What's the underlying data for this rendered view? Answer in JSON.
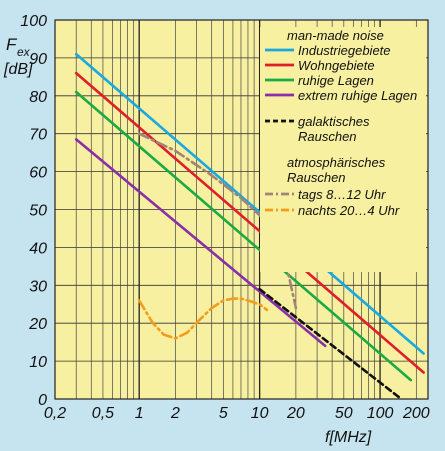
{
  "chart_data": {
    "type": "line",
    "xscale": "log",
    "xlim": [
      0.2,
      250
    ],
    "ylim": [
      0,
      100
    ],
    "xlabel": "f[MHz]",
    "ylabel_line1": "F",
    "ylabel_sub": "ex",
    "ylabel_line2": "[dB]",
    "xticks": [
      {
        "v": 0.2,
        "label": "0,2"
      },
      {
        "v": 0.5,
        "label": "0,5"
      },
      {
        "v": 1,
        "label": "1"
      },
      {
        "v": 2,
        "label": "2"
      },
      {
        "v": 5,
        "label": "5"
      },
      {
        "v": 10,
        "label": "10"
      },
      {
        "v": 20,
        "label": "20"
      },
      {
        "v": 50,
        "label": "50"
      },
      {
        "v": 100,
        "label": "100"
      },
      {
        "v": 200,
        "label": "200"
      }
    ],
    "yticks": [
      0,
      10,
      20,
      30,
      40,
      50,
      60,
      70,
      80,
      90,
      100
    ],
    "legend_placement": "top-right",
    "legend": [
      {
        "text": "man-made noise",
        "kind": "header"
      },
      {
        "text": "Industriegebiete",
        "series": 0
      },
      {
        "text": "Wohngebiete",
        "series": 1
      },
      {
        "text": "ruhige Lagen",
        "series": 2
      },
      {
        "text": "extrem ruhige Lagen",
        "series": 3
      },
      {
        "text": "galaktisches",
        "series": 4
      },
      {
        "text": "Rauschen",
        "kind": "continuation"
      },
      {
        "text": "atmosphärisches",
        "kind": "header"
      },
      {
        "text": "Rauschen",
        "kind": "header"
      },
      {
        "text": "tags 8…12 Uhr",
        "series": 5
      },
      {
        "text": "nachts 20…4 Uhr",
        "series": 6
      }
    ],
    "series": [
      {
        "color": "#19a8e0",
        "style": "solid",
        "x": [
          0.3,
          230
        ],
        "y": [
          91,
          12
        ]
      },
      {
        "color": "#e01e2a",
        "style": "solid",
        "x": [
          0.3,
          230
        ],
        "y": [
          86,
          7
        ]
      },
      {
        "color": "#1aaa44",
        "style": "solid",
        "x": [
          0.3,
          180
        ],
        "y": [
          81,
          5
        ]
      },
      {
        "color": "#8a2fa8",
        "style": "solid",
        "x": [
          0.3,
          35
        ],
        "y": [
          68.5,
          14
        ]
      },
      {
        "color": "#111111",
        "style": "dashed",
        "x": [
          10,
          150
        ],
        "y": [
          29,
          0
        ]
      },
      {
        "color": "#a08476",
        "style": "dashdot",
        "x": [
          1,
          2,
          4,
          7,
          10,
          13,
          16,
          20
        ],
        "y": [
          70,
          65.5,
          59,
          53,
          48.5,
          45,
          38,
          24
        ]
      },
      {
        "color": "#f59a1c",
        "style": "dashdot",
        "x": [
          1,
          1.3,
          1.6,
          2,
          2.5,
          3.2,
          4,
          5,
          6,
          7,
          8,
          10,
          11.5
        ],
        "y": [
          26,
          20,
          17,
          16,
          17.5,
          21,
          24,
          26,
          26.5,
          26.5,
          26,
          25,
          23.5
        ]
      }
    ]
  }
}
